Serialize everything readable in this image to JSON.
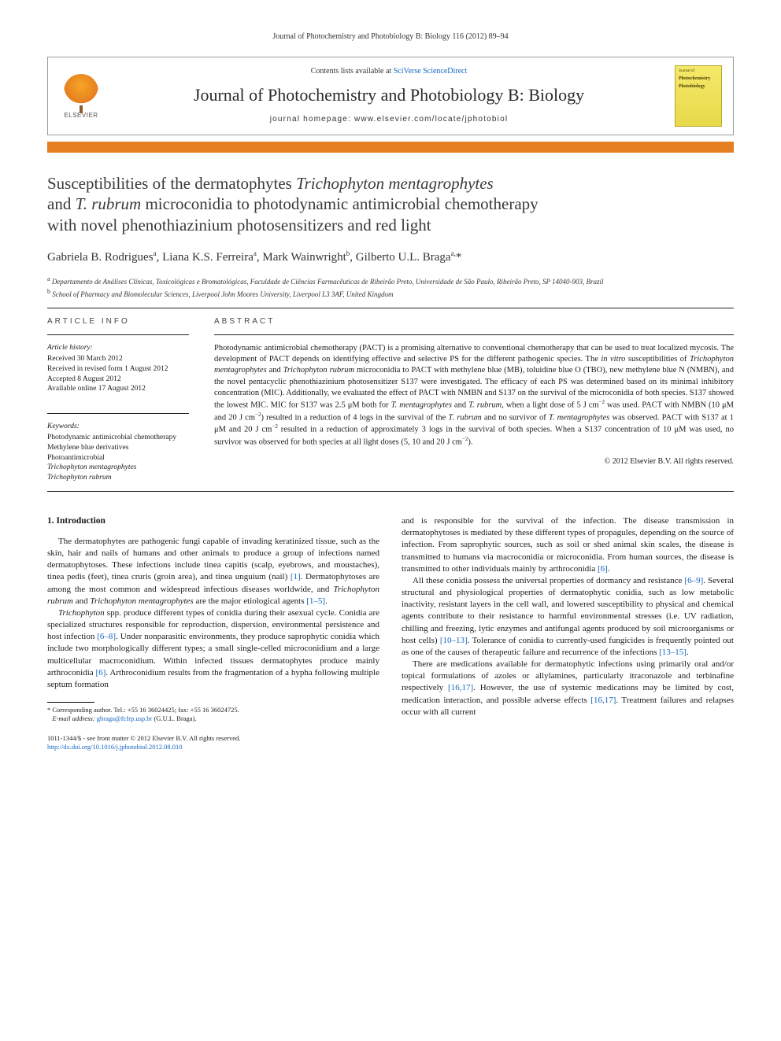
{
  "running_header": "Journal of Photochemistry and Photobiology B: Biology 116 (2012) 89–94",
  "masthead": {
    "elsevier_label": "ELSEVIER",
    "contents_prefix": "Contents lists available at ",
    "contents_link": "SciVerse ScienceDirect",
    "journal_name": "Journal of Photochemistry and Photobiology B: Biology",
    "homepage_prefix": "journal homepage: ",
    "homepage_url": "www.elsevier.com/locate/jphotobiol",
    "cover_small1": "Journal of",
    "cover_small2": "Photochemistry",
    "cover_small3": "Photobiology"
  },
  "title": {
    "line1a": "Susceptibilities of the dermatophytes ",
    "line1b_ital": "Trichophyton mentagrophytes",
    "line2a": "and ",
    "line2b_ital": "T. rubrum",
    "line2c": " microconidia to photodynamic antimicrobial chemotherapy",
    "line3": "with novel phenothiazinium photosensitizers and red light"
  },
  "authors": {
    "a1": "Gabriela B. Rodrigues",
    "a1_sup": "a",
    "a2": "Liana K.S. Ferreira",
    "a2_sup": "a",
    "a3": "Mark Wainwright",
    "a3_sup": "b",
    "a4": "Gilberto U.L. Braga",
    "a4_sup": "a,",
    "a4_star": "*"
  },
  "affiliations": {
    "a_sup": "a",
    "a_text": "Departamento de Análises Clínicas, Toxicológicas e Bromatológicas, Faculdade de Ciências Farmacêuticas de Ribeirão Preto, Universidade de São Paulo, Ribeirão Preto, SP 14040-903, Brazil",
    "b_sup": "b",
    "b_text": "School of Pharmacy and Biomolecular Sciences, Liverpool John Moores University, Liverpool L3 3AF, United Kingdom"
  },
  "info": {
    "heading": "ARTICLE INFO",
    "history_label": "Article history:",
    "h1": "Received 30 March 2012",
    "h2": "Received in revised form 1 August 2012",
    "h3": "Accepted 8 August 2012",
    "h4": "Available online 17 August 2012",
    "keywords_label": "Keywords:",
    "k1": "Photodynamic antimicrobial chemotherapy",
    "k2": "Methylene blue derivatives",
    "k3": "Photoantimicrobial",
    "k4": "Trichophyton mentagrophytes",
    "k5": "Trichophyton rubrum"
  },
  "abstract": {
    "heading": "ABSTRACT",
    "text_parts": {
      "p1": "Photodynamic antimicrobial chemotherapy (PACT) is a promising alternative to conventional chemotherapy that can be used to treat localized mycosis. The development of PACT depends on identifying effective and selective PS for the different pathogenic species. The ",
      "p2_ital": "in vitro",
      "p3": " susceptibilities of ",
      "p4_ital": "Trichophyton mentagrophytes",
      "p5": " and ",
      "p6_ital": "Trichophyton rubrum",
      "p7": " microconidia to PACT with methylene blue (MB), toluidine blue O (TBO), new methylene blue N (NMBN), and the novel pentacyclic phenothiazinium photosensitizer S137 were investigated. The efficacy of each PS was determined based on its minimal inhibitory concentration (MIC). Additionally, we evaluated the effect of PACT with NMBN and S137 on the survival of the microconidia of both species. S137 showed the lowest MIC. MIC for S137 was 2.5 μM both for ",
      "p8_ital": "T. mentagrophytes",
      "p9": " and ",
      "p10_ital": "T. rubrum",
      "p11": ", when a light dose of 5 J cm",
      "p12_sup": "−2",
      "p13": " was used. PACT with NMBN (10 μM and 20 J cm",
      "p14_sup": "−2",
      "p15": ") resulted in a reduction of 4 logs in the survival of the ",
      "p16_ital": "T. rubrum",
      "p17": " and no survivor of ",
      "p18_ital": "T. mentagrophytes",
      "p19": " was observed. PACT with S137 at 1 μM and 20 J cm",
      "p20_sup": "−2",
      "p21": " resulted in a reduction of approximately 3 logs in the survival of both species. When a S137 concentration of 10 μM was used, no survivor was observed for both species at all light doses (5, 10 and 20 J cm",
      "p22_sup": "−2",
      "p23": ")."
    },
    "copyright": "© 2012 Elsevier B.V. All rights reserved."
  },
  "section1_heading": "1. Introduction",
  "col_left": {
    "p1": "The dermatophytes are pathogenic fungi capable of invading keratinized tissue, such as the skin, hair and nails of humans and other animals to produce a group of infections named dermatophytoses. These infections include tinea capitis (scalp, eyebrows, and moustaches), tinea pedis (feet), tinea cruris (groin area), and tinea unguium (nail) ",
    "r1": "[1]",
    "p1b": ". Dermatophytoses are among the most common and widespread infectious diseases worldwide, and ",
    "p1c_ital": "Trichophyton rubrum",
    "p1d": " and ",
    "p1e_ital": "Trichophyton mentagrophytes",
    "p1f": " are the major etiological agents ",
    "r2": "[1–5]",
    "p1g": ".",
    "p2a_ital": "Trichophyton",
    "p2b": " spp. produce different types of conidia during their asexual cycle. Conidia are specialized structures responsible for reproduction, dispersion, environmental persistence and host infection ",
    "r3": "[6–8]",
    "p2c": ". Under nonparasitic environments, they produce saprophytic conidia which include two morphologically different types; a small single-celled microconidium and a large multicellular macroconidium. Within infected tissues dermatophytes produce mainly arthroconidia ",
    "r4": "[6]",
    "p2d": ". Arthroconidium results from the fragmentation of a hypha following multiple septum formation"
  },
  "col_right": {
    "p1": "and is responsible for the survival of the infection. The disease transmission in dermatophytoses is mediated by these different types of propagules, depending on the source of infection. From saprophytic sources, such as soil or shed animal skin scales, the disease is transmitted to humans via macroconidia or microconidia. From human sources, the disease is transmitted to other individuals mainly by arthroconidia ",
    "r1": "[6]",
    "p1b": ".",
    "p2": "All these conidia possess the universal properties of dormancy and resistance ",
    "r2": "[6–9]",
    "p2b": ". Several structural and physiological properties of dermatophytic conidia, such as low metabolic inactivity, resistant layers in the cell wall, and lowered susceptibility to physical and chemical agents contribute to their resistance to harmful environmental stresses (i.e. UV radiation, chilling and freezing, lytic enzymes and antifungal agents produced by soil microorganisms or host cells) ",
    "r3": "[10–13]",
    "p2c": ". Tolerance of conidia to currently-used fungicides is frequently pointed out as one of the causes of therapeutic failure and recurrence of the infections ",
    "r4": "[13–15]",
    "p2d": ".",
    "p3": "There are medications available for dermatophytic infections using primarily oral and/or topical formulations of azoles or allylamines, particularly itraconazole and terbinafine respectively ",
    "r5": "[16,17]",
    "p3b": ". However, the use of systemic medications may be limited by cost, medication interaction, and possible adverse effects ",
    "r6": "[16,17]",
    "p3c": ". Treatment failures and relapses occur with all current"
  },
  "footnote": {
    "star": "*",
    "corr": " Corresponding author. Tel.: +55 16 36024425; fax: +55 16 36024725.",
    "email_label": "E-mail address:",
    "email": "gbraga@fcfrp.usp.br",
    "email_tail": " (G.U.L. Braga)."
  },
  "bottom": {
    "line1": "1011-1344/$ - see front matter © 2012 Elsevier B.V. All rights reserved.",
    "doi": "http://dx.doi.org/10.1016/j.jphotobiol.2012.08.010"
  }
}
